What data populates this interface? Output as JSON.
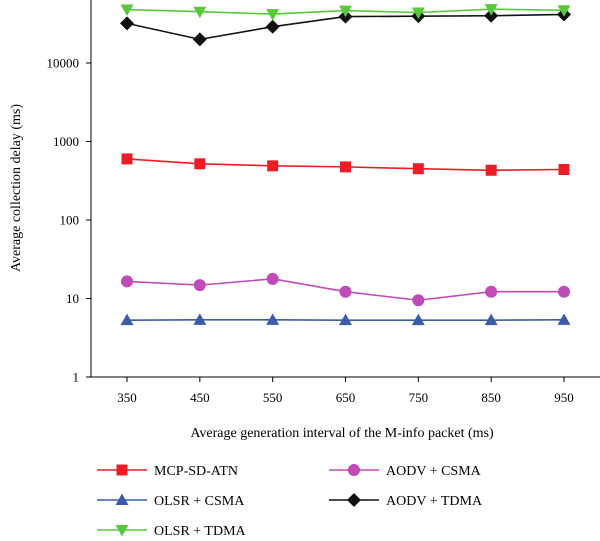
{
  "chart_data": {
    "type": "line",
    "xlabel": "Average generation interval of the M-info packet (ms)",
    "ylabel": "Average collection delay (ms)",
    "x": [
      350,
      450,
      550,
      650,
      750,
      850,
      950
    ],
    "x_tick_labels": [
      "350",
      "450",
      "550",
      "650",
      "750",
      "850",
      "950"
    ],
    "y_scale": "log",
    "ylim": [
      1,
      50000
    ],
    "y_ticks": [
      1,
      10,
      100,
      1000,
      10000
    ],
    "y_tick_labels": [
      "1",
      "10",
      "100",
      "1000",
      "10000"
    ],
    "grid": false,
    "legend_position": "bottom",
    "series": [
      {
        "name": "MCP-SD-ATN",
        "color": "#ee1c25",
        "marker": "square",
        "values": [
          600,
          520,
          490,
          475,
          450,
          430,
          440
        ]
      },
      {
        "name": "AODV + CSMA",
        "color": "#bf4ab8",
        "marker": "circle",
        "values": [
          16.5,
          14.8,
          17.8,
          12.2,
          9.5,
          12.2,
          12.2
        ]
      },
      {
        "name": "OLSR + CSMA",
        "color": "#3c5ba8",
        "marker": "triangle-up",
        "values": [
          5.3,
          5.35,
          5.35,
          5.3,
          5.3,
          5.3,
          5.35
        ]
      },
      {
        "name": "AODV + TDMA",
        "color": "#111111",
        "marker": "diamond",
        "values": [
          32000,
          20000,
          29000,
          39000,
          39500,
          40000,
          41500
        ]
      },
      {
        "name": "OLSR + TDMA",
        "color": "#57c838",
        "marker": "triangle-down",
        "values": [
          48000,
          45000,
          42000,
          46500,
          44000,
          48500,
          47000
        ]
      }
    ]
  }
}
